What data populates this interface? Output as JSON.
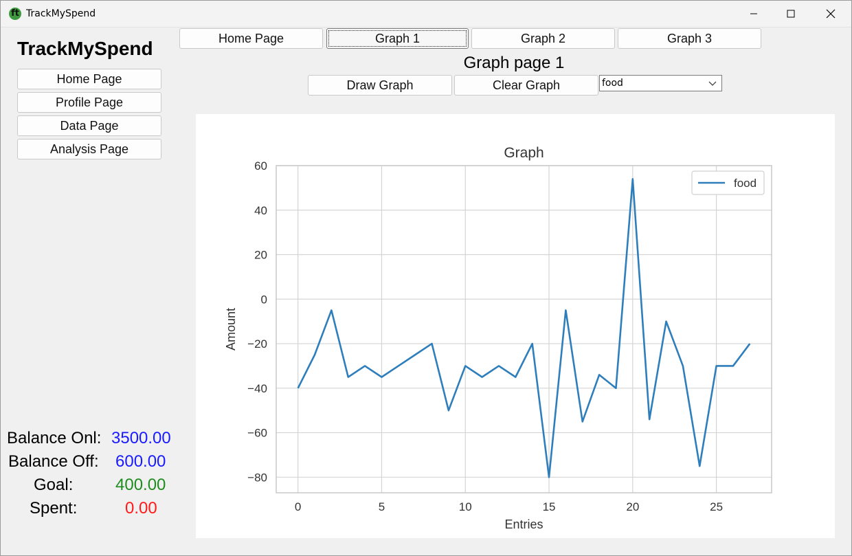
{
  "window": {
    "title": "TrackMySpend",
    "icon": "app-logo-icon"
  },
  "brand": "TrackMySpend",
  "top_nav": [
    "Home Page",
    "Graph 1",
    "Graph 2",
    "Graph 3"
  ],
  "side_nav": [
    "Home Page",
    "Profile Page",
    "Data Page",
    "Analysis Page"
  ],
  "page_heading": "Graph page 1",
  "controls": {
    "draw_label": "Draw Graph",
    "clear_label": "Clear Graph",
    "category_selected": "food"
  },
  "stats": [
    {
      "label": "Balance Onl:",
      "value": "3500.00",
      "color": "#1a1aff"
    },
    {
      "label": "Balance Off:",
      "value": "600.00",
      "color": "#1a1aff"
    },
    {
      "label": "Goal:",
      "value": "400.00",
      "color": "#1e8c1e"
    },
    {
      "label": "Spent:",
      "value": "0.00",
      "color": "#ff1a1a"
    }
  ],
  "chart_data": {
    "type": "line",
    "title": "Graph",
    "xlabel": "Entries",
    "ylabel": "Amount",
    "xlim": [
      -1.3,
      28.3
    ],
    "ylim": [
      -87,
      60
    ],
    "xticks": [
      0,
      5,
      10,
      15,
      20,
      25
    ],
    "yticks": [
      60,
      40,
      20,
      0,
      -20,
      -40,
      -60,
      -80
    ],
    "grid": true,
    "legend": "top-right",
    "series": [
      {
        "name": "food",
        "color": "#2e7ebc",
        "x": [
          0,
          1,
          2,
          3,
          4,
          5,
          6,
          7,
          8,
          9,
          10,
          11,
          12,
          13,
          14,
          15,
          16,
          17,
          18,
          19,
          20,
          21,
          22,
          23,
          24,
          25,
          26,
          27
        ],
        "values": [
          -40,
          -25,
          -5,
          -35,
          -30,
          -35,
          -30,
          -25,
          -20,
          -50,
          -30,
          -35,
          -30,
          -35,
          -20,
          -80,
          -5,
          -55,
          -34,
          -40,
          54,
          -54,
          -10,
          -30,
          -75,
          -30,
          -30,
          -20
        ]
      }
    ]
  }
}
